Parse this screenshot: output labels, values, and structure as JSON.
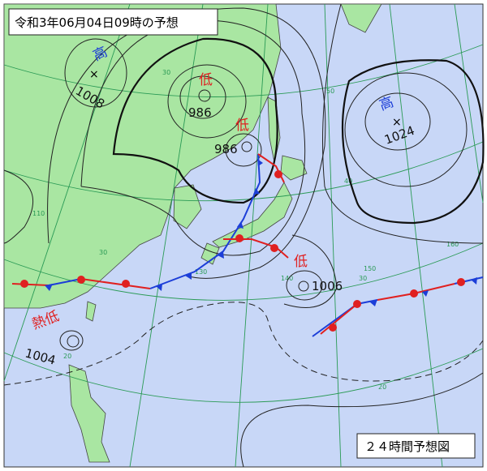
{
  "header": {
    "title": "令和3年06月04日09時の予想"
  },
  "footer": {
    "label": "２４時間予想図"
  },
  "systems": [
    {
      "symbol": "高",
      "pressure": 1008
    },
    {
      "symbol": "低",
      "pressure": 986
    },
    {
      "symbol": "低",
      "pressure": 986
    },
    {
      "symbol": "高",
      "pressure": 1024
    },
    {
      "symbol": "低",
      "pressure": 1006
    },
    {
      "symbol": "熱低",
      "pressure": 1004
    }
  ],
  "grid_labels": [
    "50",
    "40",
    "30",
    "20",
    "110",
    "30",
    "130",
    "140",
    "150",
    "160",
    "30",
    "20"
  ]
}
